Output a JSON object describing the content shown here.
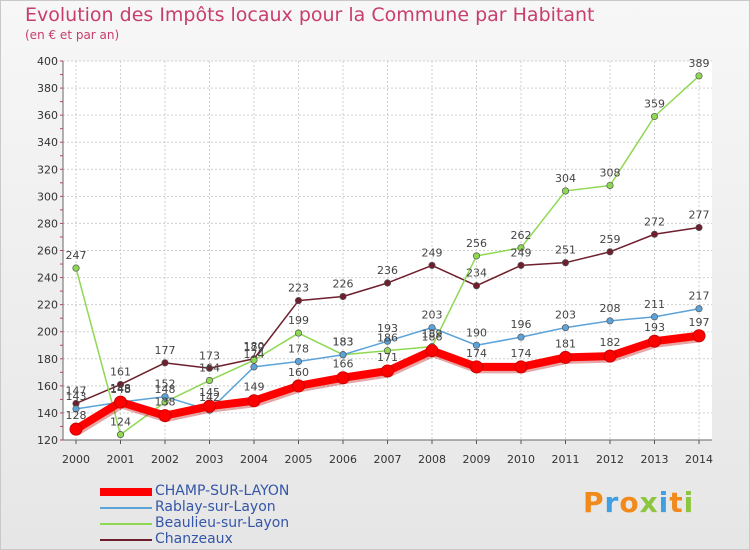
{
  "page": {
    "title": "Evolution des Impôts locaux pour la Commune par Habitant",
    "subtitle": "(en € et par an)"
  },
  "logo": {
    "text": "Proxiti",
    "colors": [
      "#f18a1a",
      "#3f9fe0",
      "#f18a1a",
      "#8bc63e",
      "#3f9fe0",
      "#f18a1a",
      "#8bc63e"
    ]
  },
  "chart_data": {
    "type": "line",
    "title": "Evolution des Impôts locaux pour la Commune par Habitant",
    "subtitle": "(en € et par an)",
    "xlabel": "",
    "ylabel": "",
    "x": [
      2000,
      2001,
      2002,
      2003,
      2004,
      2005,
      2006,
      2007,
      2008,
      2009,
      2010,
      2011,
      2012,
      2013,
      2014
    ],
    "yticks": [
      120,
      140,
      160,
      180,
      200,
      220,
      240,
      260,
      280,
      300,
      320,
      340,
      360,
      380,
      400
    ],
    "ylim": [
      120,
      400
    ],
    "grid": true,
    "legend_position": "bottom-left",
    "series": [
      {
        "name": "CHAMP-SUR-LAYON",
        "color": "#ff0000",
        "values": [
          128,
          148,
          138,
          145,
          149,
          160,
          166,
          171,
          186,
          174,
          174,
          181,
          182,
          193,
          197
        ]
      },
      {
        "name": "Rablay-sur-Layon",
        "color": "#5ba3d9",
        "values": [
          143,
          148,
          152,
          142,
          174,
          178,
          183,
          193,
          203,
          190,
          196,
          203,
          208,
          211,
          217
        ]
      },
      {
        "name": "Beaulieu-sur-Layon",
        "color": "#8ed852",
        "values": [
          247,
          124,
          148,
          164,
          179,
          199,
          183,
          186,
          189,
          256,
          262,
          304,
          308,
          359,
          389
        ]
      },
      {
        "name": "Chanzeaux",
        "color": "#6e1e2c",
        "values": [
          147,
          161,
          177,
          173,
          180,
          223,
          226,
          236,
          249,
          234,
          249,
          251,
          259,
          272,
          277
        ]
      }
    ]
  }
}
